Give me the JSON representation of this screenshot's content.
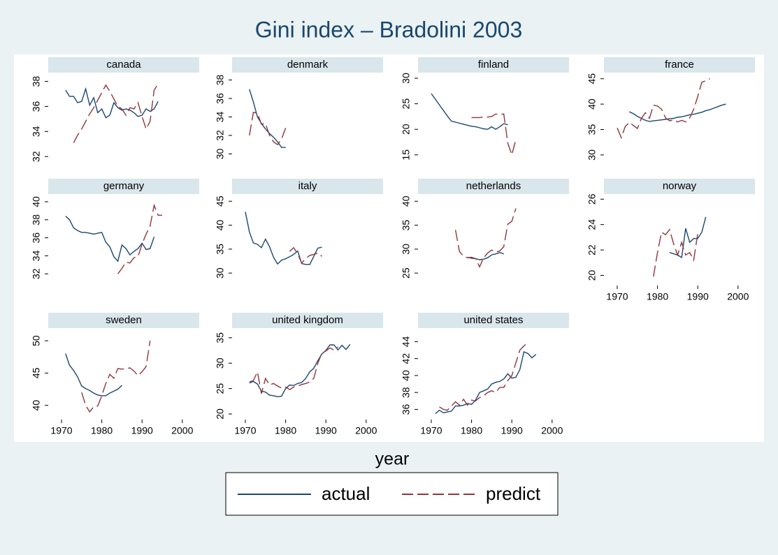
{
  "title": "Gini index – Bradolini 2003",
  "x_label": "year",
  "chart_data": [
    {
      "type": "line",
      "title": "canada",
      "xlim": [
        1966.7,
        2004.2
      ],
      "ylim": [
        31.4,
        38.7
      ],
      "yticks": [
        32,
        34,
        36,
        38
      ],
      "x": [
        1971,
        1972,
        1973,
        1974,
        1975,
        1976,
        1977,
        1978,
        1979,
        1980,
        1981,
        1982,
        1983,
        1984,
        1985,
        1986,
        1987,
        1988,
        1989,
        1990,
        1991,
        1992,
        1993,
        1994
      ],
      "series": [
        {
          "name": "actual",
          "color": "#1a476f",
          "line_style": "solid",
          "values": [
            37.3,
            36.8,
            36.8,
            36.3,
            36.4,
            37.4,
            36.1,
            36.7,
            35.5,
            35.8,
            35.1,
            35.3,
            36.3,
            35.9,
            35.7,
            35.8,
            35.7,
            35.5,
            35.2,
            35.3,
            35.8,
            35.6,
            35.8,
            36.4
          ]
        },
        {
          "name": "predict",
          "color": "#90353b",
          "line_style": "dashed",
          "values": [
            null,
            null,
            33.1,
            33.7,
            34.2,
            34.8,
            35.4,
            35.9,
            36.5,
            37.1,
            37.7,
            37.2,
            36.6,
            36.0,
            35.8,
            35.3,
            35.9,
            35.8,
            36.3,
            35.2,
            34.2,
            34.8,
            37.3,
            37.8
          ]
        }
      ]
    },
    {
      "type": "line",
      "title": "denmark",
      "xlim": [
        1966.7,
        2004.2
      ],
      "ylim": [
        28.9,
        38.8
      ],
      "yticks": [
        30,
        32,
        34,
        36,
        38
      ],
      "x": [
        1971,
        1972,
        1973,
        1974,
        1975,
        1976,
        1977,
        1978,
        1979,
        1980
      ],
      "series": [
        {
          "name": "actual",
          "color": "#1a476f",
          "line_style": "solid",
          "values": [
            37.0,
            35.6,
            34.0,
            33.3,
            32.7,
            32.2,
            31.8,
            31.3,
            30.7,
            30.7
          ]
        },
        {
          "name": "predict",
          "color": "#90353b",
          "line_style": "dashed",
          "values": [
            32.0,
            34.5,
            34.4,
            33.2,
            33.3,
            32.0,
            31.3,
            31.0,
            31.6,
            32.8
          ]
        }
      ]
    },
    {
      "type": "line",
      "title": "finland",
      "xlim": [
        1966.7,
        2004.2
      ],
      "ylim": [
        13.2,
        31.1
      ],
      "yticks": [
        15,
        20,
        25,
        30
      ],
      "x": [
        1970,
        1971,
        1972,
        1973,
        1974,
        1975,
        1976,
        1977,
        1978,
        1979,
        1980,
        1981,
        1982,
        1983,
        1984,
        1985,
        1986,
        1987,
        1988,
        1989,
        1990,
        1991
      ],
      "series": [
        {
          "name": "actual",
          "color": "#1a476f",
          "line_style": "solid",
          "values": [
            27.0,
            25.9,
            24.8,
            23.7,
            22.6,
            21.6,
            21.4,
            21.2,
            21.0,
            20.8,
            20.6,
            20.5,
            20.3,
            20.1,
            20.0,
            20.5,
            20.0,
            20.5,
            21.1,
            20.9,
            null,
            null
          ]
        },
        {
          "name": "predict",
          "color": "#90353b",
          "line_style": "dashed",
          "values": [
            null,
            null,
            null,
            null,
            null,
            null,
            null,
            null,
            null,
            null,
            22.3,
            22.3,
            22.3,
            22.4,
            22.4,
            22.5,
            23.0,
            22.9,
            23.0,
            17.3,
            15.0,
            18.0
          ]
        }
      ]
    },
    {
      "type": "line",
      "title": "france",
      "xlim": [
        1966.7,
        2004.2
      ],
      "ylim": [
        28.2,
        46.2
      ],
      "yticks": [
        30,
        35,
        40,
        45
      ],
      "x": [
        1970,
        1971,
        1972,
        1973,
        1974,
        1975,
        1976,
        1977,
        1978,
        1979,
        1980,
        1981,
        1982,
        1983,
        1984,
        1985,
        1986,
        1987,
        1988,
        1989,
        1990,
        1991,
        1992,
        1993,
        1994,
        1995,
        1996,
        1997
      ],
      "series": [
        {
          "name": "actual",
          "color": "#1a476f",
          "line_style": "solid",
          "values": [
            null,
            null,
            null,
            38.5,
            38.1,
            37.6,
            37.2,
            36.8,
            36.6,
            36.7,
            36.8,
            36.9,
            37.0,
            37.1,
            37.2,
            37.4,
            37.5,
            37.7,
            37.9,
            38.0,
            38.2,
            38.4,
            38.7,
            38.9,
            39.2,
            39.5,
            39.8,
            40.0
          ]
        },
        {
          "name": "predict",
          "color": "#90353b",
          "line_style": "dashed",
          "values": [
            35.3,
            33.4,
            35.6,
            36.4,
            35.8,
            35.2,
            37.2,
            38.3,
            37.2,
            39.8,
            39.6,
            39.0,
            37.3,
            36.7,
            36.9,
            36.5,
            36.8,
            36.5,
            37.3,
            39.0,
            41.5,
            44.3,
            44.6,
            45.0,
            null,
            null,
            null,
            null
          ]
        }
      ]
    },
    {
      "type": "line",
      "title": "germany",
      "xlim": [
        1966.7,
        2004.2
      ],
      "ylim": [
        30.7,
        40.85
      ],
      "yticks": [
        32,
        34,
        36,
        38,
        40
      ],
      "x": [
        1971,
        1972,
        1973,
        1974,
        1975,
        1976,
        1977,
        1978,
        1979,
        1980,
        1981,
        1982,
        1983,
        1984,
        1985,
        1986,
        1987,
        1988,
        1989,
        1990,
        1991,
        1992,
        1993,
        1994,
        1995
      ],
      "series": [
        {
          "name": "actual",
          "color": "#1a476f",
          "line_style": "solid",
          "values": [
            38.4,
            38.0,
            37.1,
            36.8,
            36.6,
            36.6,
            36.5,
            36.4,
            36.5,
            36.6,
            35.5,
            35.0,
            33.9,
            33.4,
            35.2,
            34.8,
            34.1,
            34.5,
            34.8,
            35.4,
            34.7,
            34.8,
            36.1,
            null,
            null
          ]
        },
        {
          "name": "predict",
          "color": "#90353b",
          "line_style": "dashed",
          "values": [
            null,
            null,
            null,
            null,
            null,
            null,
            null,
            null,
            null,
            null,
            null,
            null,
            null,
            32.0,
            32.6,
            33.3,
            33.2,
            33.8,
            33.9,
            35.3,
            36.4,
            37.3,
            39.6,
            38.5,
            38.5
          ]
        }
      ]
    },
    {
      "type": "line",
      "title": "italy",
      "xlim": [
        1966.7,
        2004.2
      ],
      "ylim": [
        27.4,
        46.5
      ],
      "yticks": [
        30,
        35,
        40,
        45
      ],
      "x": [
        1970,
        1971,
        1972,
        1973,
        1974,
        1975,
        1976,
        1977,
        1978,
        1979,
        1980,
        1981,
        1982,
        1983,
        1984,
        1985,
        1986,
        1987,
        1988,
        1989
      ],
      "series": [
        {
          "name": "actual",
          "color": "#1a476f",
          "line_style": "solid",
          "values": [
            42.8,
            38.6,
            36.3,
            36.0,
            35.3,
            37.1,
            35.5,
            33.3,
            31.9,
            32.7,
            33.0,
            33.4,
            33.9,
            34.6,
            32.0,
            31.8,
            31.8,
            33.5,
            35.2,
            35.4
          ]
        },
        {
          "name": "predict",
          "color": "#90353b",
          "line_style": "dashed",
          "values": [
            null,
            null,
            null,
            null,
            null,
            null,
            null,
            null,
            null,
            null,
            null,
            34.5,
            35.3,
            34.0,
            32.1,
            33.0,
            33.7,
            33.9,
            34.2,
            33.5
          ]
        }
      ]
    },
    {
      "type": "line",
      "title": "netherlands",
      "xlim": [
        1966.7,
        2004.2
      ],
      "ylim": [
        22.4,
        41.5
      ],
      "yticks": [
        25,
        30,
        35,
        40
      ],
      "x": [
        1976,
        1977,
        1978,
        1979,
        1980,
        1981,
        1982,
        1983,
        1984,
        1985,
        1986,
        1987,
        1988,
        1989,
        1990,
        1991
      ],
      "series": [
        {
          "name": "actual",
          "color": "#1a476f",
          "line_style": "solid",
          "values": [
            null,
            null,
            null,
            28.3,
            28.1,
            28.0,
            27.8,
            27.9,
            28.2,
            28.8,
            29.0,
            29.3,
            29.0,
            null,
            null,
            null
          ]
        },
        {
          "name": "predict",
          "color": "#90353b",
          "line_style": "dashed",
          "values": [
            34.0,
            29.5,
            28.5,
            28.2,
            28.3,
            28.0,
            26.3,
            28.2,
            29.2,
            29.8,
            29.4,
            29.6,
            30.5,
            35.2,
            35.8,
            38.5
          ]
        }
      ]
    },
    {
      "type": "line",
      "title": "norway",
      "xlim": [
        1966.7,
        2004.2
      ],
      "ylim": [
        19.2,
        26.4
      ],
      "yticks": [
        20,
        22,
        24,
        26
      ],
      "xticks": [
        1970,
        1980,
        1990,
        2000
      ],
      "x": [
        1979,
        1980,
        1981,
        1982,
        1983,
        1984,
        1985,
        1986,
        1987,
        1988,
        1989,
        1990,
        1991,
        1992
      ],
      "series": [
        {
          "name": "actual",
          "color": "#1a476f",
          "line_style": "solid",
          "values": [
            null,
            null,
            null,
            null,
            21.8,
            21.7,
            21.6,
            21.4,
            23.7,
            22.6,
            22.9,
            22.9,
            23.4,
            24.6
          ]
        },
        {
          "name": "predict",
          "color": "#90353b",
          "line_style": "dashed",
          "values": [
            19.9,
            21.8,
            23.4,
            23.2,
            23.6,
            22.5,
            21.6,
            22.6,
            21.6,
            21.8,
            21.2,
            23.3,
            null,
            null
          ]
        }
      ]
    },
    {
      "type": "line",
      "title": "sweden",
      "xlim": [
        1966.7,
        2004.2
      ],
      "ylim": [
        37.8,
        51.96
      ],
      "yticks": [
        40,
        45,
        50
      ],
      "xticks": [
        1970,
        1980,
        1990,
        2000
      ],
      "x": [
        1971,
        1972,
        1973,
        1974,
        1975,
        1976,
        1977,
        1978,
        1979,
        1980,
        1981,
        1982,
        1983,
        1984,
        1985,
        1986,
        1987,
        1988,
        1989,
        1990,
        1991,
        1992
      ],
      "series": [
        {
          "name": "actual",
          "color": "#1a476f",
          "line_style": "solid",
          "values": [
            48.0,
            46.2,
            45.4,
            44.4,
            43.0,
            42.6,
            42.3,
            41.9,
            41.6,
            41.5,
            41.5,
            41.9,
            42.2,
            42.5,
            43.1,
            null,
            null,
            null,
            null,
            null,
            null,
            null
          ]
        },
        {
          "name": "predict",
          "color": "#90353b",
          "line_style": "dashed",
          "values": [
            null,
            null,
            null,
            null,
            42.0,
            40.0,
            39.0,
            39.8,
            39.9,
            41.5,
            43.4,
            44.8,
            44.2,
            45.7,
            45.6,
            45.7,
            45.8,
            45.3,
            44.6,
            45.2,
            46.0,
            50.0
          ]
        }
      ]
    },
    {
      "type": "line",
      "title": "united kingdom",
      "xlim": [
        1966.7,
        2004.2
      ],
      "ylim": [
        18.9,
        36.9
      ],
      "yticks": [
        20,
        25,
        30,
        35
      ],
      "xticks": [
        1970,
        1980,
        1990,
        2000
      ],
      "x": [
        1971,
        1972,
        1973,
        1974,
        1975,
        1976,
        1977,
        1978,
        1979,
        1980,
        1981,
        1982,
        1983,
        1984,
        1985,
        1986,
        1987,
        1988,
        1989,
        1990,
        1991,
        1992,
        1993,
        1994,
        1995,
        1996
      ],
      "series": [
        {
          "name": "actual",
          "color": "#1a476f",
          "line_style": "solid",
          "values": [
            26.1,
            26.4,
            25.9,
            24.5,
            24.3,
            23.7,
            23.6,
            23.4,
            23.5,
            25.0,
            25.7,
            25.6,
            26.0,
            26.2,
            27.0,
            28.3,
            29.0,
            30.5,
            31.8,
            32.5,
            33.6,
            33.6,
            32.6,
            33.5,
            32.7,
            33.7
          ]
        },
        {
          "name": "predict",
          "color": "#90353b",
          "line_style": "dashed",
          "values": [
            26.3,
            26.6,
            28.3,
            24.0,
            27.0,
            25.7,
            26.0,
            25.5,
            25.1,
            25.3,
            24.8,
            25.3,
            25.5,
            25.8,
            26.0,
            26.3,
            27.0,
            30.0,
            32.0,
            32.4,
            33.0,
            32.6,
            33.2,
            null,
            null,
            null
          ]
        }
      ]
    },
    {
      "type": "line",
      "title": "united states",
      "xlim": [
        1966.7,
        2004.2
      ],
      "ylim": [
        34.8,
        45.6
      ],
      "yticks": [
        36,
        38,
        40,
        42,
        44
      ],
      "xticks": [
        1970,
        1980,
        1990,
        2000
      ],
      "x": [
        1971,
        1972,
        1973,
        1974,
        1975,
        1976,
        1977,
        1978,
        1979,
        1980,
        1981,
        1982,
        1983,
        1984,
        1985,
        1986,
        1987,
        1988,
        1989,
        1990,
        1991,
        1992,
        1993,
        1994,
        1995,
        1996
      ],
      "series": [
        {
          "name": "actual",
          "color": "#1a476f",
          "line_style": "solid",
          "values": [
            35.5,
            35.9,
            35.6,
            35.7,
            35.8,
            36.4,
            36.4,
            36.5,
            36.7,
            36.6,
            37.1,
            38.0,
            38.2,
            38.4,
            39.0,
            39.2,
            39.3,
            39.6,
            40.2,
            39.7,
            39.8,
            40.7,
            42.8,
            42.6,
            42.1,
            42.5
          ]
        },
        {
          "name": "predict",
          "color": "#90353b",
          "line_style": "dashed",
          "values": [
            null,
            36.3,
            36.0,
            35.9,
            36.4,
            36.9,
            36.5,
            37.2,
            36.5,
            37.1,
            37.0,
            37.4,
            37.6,
            38.0,
            38.2,
            38.0,
            38.6,
            38.6,
            39.4,
            40.0,
            41.5,
            43.0,
            43.5,
            43.9,
            null,
            null
          ]
        }
      ]
    }
  ]
}
